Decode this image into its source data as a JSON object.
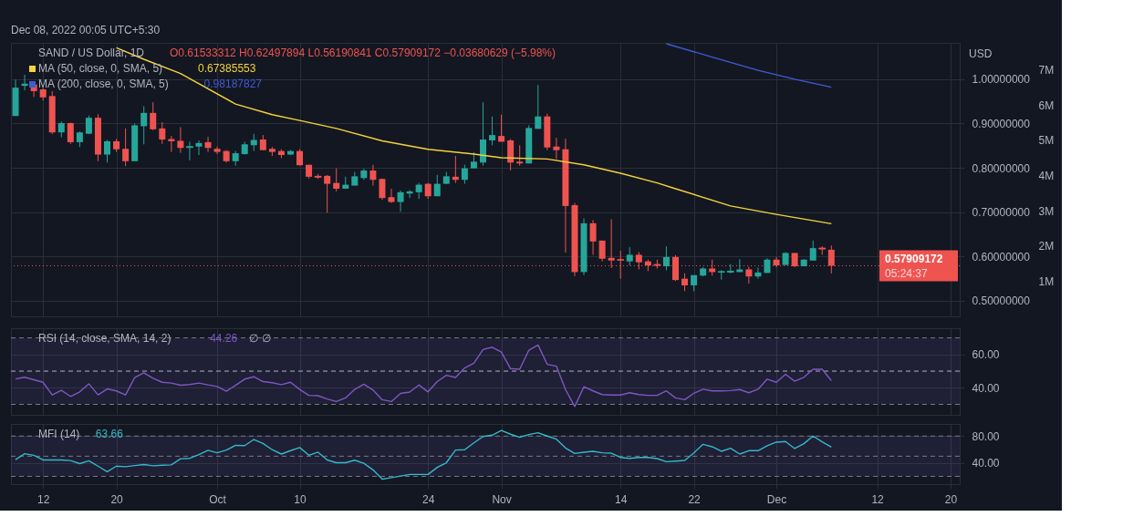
{
  "chart_data": [
    {
      "type": "candlestick",
      "title": "SAND / US Dollar, 1D",
      "ylabel": "USD",
      "x": [
        "2022-09-09",
        "2022-09-10",
        "2022-09-11",
        "2022-09-12",
        "2022-09-13",
        "2022-09-14",
        "2022-09-15",
        "2022-09-16",
        "2022-09-17",
        "2022-09-18",
        "2022-09-19",
        "2022-09-20",
        "2022-09-21",
        "2022-09-22",
        "2022-09-23",
        "2022-09-24",
        "2022-09-25",
        "2022-09-26",
        "2022-09-27",
        "2022-09-28",
        "2022-09-29",
        "2022-09-30",
        "2022-10-01",
        "2022-10-02",
        "2022-10-03",
        "2022-10-04",
        "2022-10-05",
        "2022-10-06",
        "2022-10-07",
        "2022-10-08",
        "2022-10-09",
        "2022-10-10",
        "2022-10-11",
        "2022-10-12",
        "2022-10-13",
        "2022-10-14",
        "2022-10-15",
        "2022-10-16",
        "2022-10-17",
        "2022-10-18",
        "2022-10-19",
        "2022-10-20",
        "2022-10-21",
        "2022-10-22",
        "2022-10-23",
        "2022-10-24",
        "2022-10-25",
        "2022-10-26",
        "2022-10-27",
        "2022-10-28",
        "2022-10-29",
        "2022-10-30",
        "2022-10-31",
        "2022-11-01",
        "2022-11-02",
        "2022-11-03",
        "2022-11-04",
        "2022-11-05",
        "2022-11-06",
        "2022-11-07",
        "2022-11-08",
        "2022-11-09",
        "2022-11-10",
        "2022-11-11",
        "2022-11-12",
        "2022-11-13",
        "2022-11-14",
        "2022-11-15",
        "2022-11-16",
        "2022-11-17",
        "2022-11-18",
        "2022-11-19",
        "2022-11-20",
        "2022-11-21",
        "2022-11-22",
        "2022-11-23",
        "2022-11-24",
        "2022-11-25",
        "2022-11-26",
        "2022-11-27",
        "2022-11-28",
        "2022-11-29",
        "2022-11-30",
        "2022-12-01",
        "2022-12-02",
        "2022-12-03",
        "2022-12-04",
        "2022-12-05",
        "2022-12-06",
        "2022-12-07"
      ],
      "ohlc": [
        [
          0.917,
          0.999,
          0.917,
          0.981
        ],
        [
          0.985,
          1.01,
          0.975,
          0.99
        ],
        [
          0.988,
          0.99,
          0.96,
          0.973
        ],
        [
          0.977,
          0.98,
          0.952,
          0.959
        ],
        [
          0.962,
          0.973,
          0.876,
          0.88
        ],
        [
          0.88,
          0.905,
          0.869,
          0.901
        ],
        [
          0.901,
          0.902,
          0.854,
          0.858
        ],
        [
          0.858,
          0.882,
          0.847,
          0.88
        ],
        [
          0.877,
          0.918,
          0.876,
          0.913
        ],
        [
          0.913,
          0.921,
          0.815,
          0.83
        ],
        [
          0.83,
          0.863,
          0.812,
          0.86
        ],
        [
          0.86,
          0.865,
          0.836,
          0.842
        ],
        [
          0.843,
          0.889,
          0.804,
          0.815
        ],
        [
          0.815,
          0.9,
          0.815,
          0.896
        ],
        [
          0.894,
          0.939,
          0.853,
          0.924
        ],
        [
          0.924,
          0.948,
          0.885,
          0.887
        ],
        [
          0.889,
          0.903,
          0.854,
          0.864
        ],
        [
          0.865,
          0.872,
          0.836,
          0.86
        ],
        [
          0.861,
          0.892,
          0.834,
          0.845
        ],
        [
          0.846,
          0.859,
          0.817,
          0.848
        ],
        [
          0.848,
          0.862,
          0.829,
          0.856
        ],
        [
          0.858,
          0.87,
          0.836,
          0.845
        ],
        [
          0.843,
          0.848,
          0.831,
          0.836
        ],
        [
          0.838,
          0.84,
          0.812,
          0.815
        ],
        [
          0.815,
          0.838,
          0.805,
          0.833
        ],
        [
          0.831,
          0.859,
          0.83,
          0.853
        ],
        [
          0.851,
          0.877,
          0.838,
          0.863
        ],
        [
          0.864,
          0.874,
          0.84,
          0.84
        ],
        [
          0.843,
          0.847,
          0.827,
          0.836
        ],
        [
          0.838,
          0.842,
          0.822,
          0.829
        ],
        [
          0.83,
          0.84,
          0.829,
          0.838
        ],
        [
          0.838,
          0.842,
          0.805,
          0.806
        ],
        [
          0.807,
          0.807,
          0.776,
          0.78
        ],
        [
          0.781,
          0.786,
          0.775,
          0.779
        ],
        [
          0.782,
          0.784,
          0.699,
          0.764
        ],
        [
          0.766,
          0.799,
          0.747,
          0.753
        ],
        [
          0.753,
          0.78,
          0.753,
          0.762
        ],
        [
          0.76,
          0.791,
          0.76,
          0.781
        ],
        [
          0.777,
          0.798,
          0.773,
          0.794
        ],
        [
          0.794,
          0.807,
          0.76,
          0.773
        ],
        [
          0.775,
          0.776,
          0.728,
          0.732
        ],
        [
          0.734,
          0.753,
          0.721,
          0.723
        ],
        [
          0.723,
          0.749,
          0.701,
          0.745
        ],
        [
          0.742,
          0.75,
          0.732,
          0.747
        ],
        [
          0.745,
          0.766,
          0.73,
          0.762
        ],
        [
          0.764,
          0.766,
          0.73,
          0.736
        ],
        [
          0.736,
          0.784,
          0.736,
          0.764
        ],
        [
          0.764,
          0.791,
          0.764,
          0.781
        ],
        [
          0.78,
          0.827,
          0.766,
          0.773
        ],
        [
          0.773,
          0.807,
          0.764,
          0.799
        ],
        [
          0.799,
          0.835,
          0.799,
          0.814
        ],
        [
          0.812,
          0.948,
          0.805,
          0.864
        ],
        [
          0.862,
          0.916,
          0.851,
          0.874
        ],
        [
          0.872,
          0.92,
          0.859,
          0.859
        ],
        [
          0.862,
          0.865,
          0.794,
          0.812
        ],
        [
          0.814,
          0.851,
          0.805,
          0.81
        ],
        [
          0.81,
          0.896,
          0.81,
          0.89
        ],
        [
          0.888,
          0.987,
          0.888,
          0.916
        ],
        [
          0.916,
          0.922,
          0.84,
          0.846
        ],
        [
          0.848,
          0.868,
          0.82,
          0.84
        ],
        [
          0.842,
          0.866,
          0.609,
          0.714
        ],
        [
          0.716,
          0.721,
          0.556,
          0.565
        ],
        [
          0.565,
          0.686,
          0.558,
          0.675
        ],
        [
          0.675,
          0.682,
          0.604,
          0.634
        ],
        [
          0.636,
          0.636,
          0.589,
          0.595
        ],
        [
          0.597,
          0.684,
          0.574,
          0.591
        ],
        [
          0.593,
          0.613,
          0.55,
          0.592
        ],
        [
          0.589,
          0.621,
          0.58,
          0.604
        ],
        [
          0.604,
          0.61,
          0.571,
          0.587
        ],
        [
          0.589,
          0.593,
          0.567,
          0.58
        ],
        [
          0.582,
          0.593,
          0.573,
          0.58
        ],
        [
          0.578,
          0.623,
          0.569,
          0.599
        ],
        [
          0.599,
          0.603,
          0.545,
          0.547
        ],
        [
          0.55,
          0.562,
          0.522,
          0.535
        ],
        [
          0.535,
          0.558,
          0.522,
          0.558
        ],
        [
          0.557,
          0.576,
          0.555,
          0.573
        ],
        [
          0.573,
          0.593,
          0.557,
          0.565
        ],
        [
          0.565,
          0.569,
          0.548,
          0.566
        ],
        [
          0.565,
          0.583,
          0.562,
          0.567
        ],
        [
          0.565,
          0.594,
          0.565,
          0.571
        ],
        [
          0.571,
          0.577,
          0.539,
          0.555
        ],
        [
          0.555,
          0.575,
          0.55,
          0.564
        ],
        [
          0.563,
          0.596,
          0.563,
          0.593
        ],
        [
          0.593,
          0.599,
          0.576,
          0.58
        ],
        [
          0.581,
          0.61,
          0.581,
          0.608
        ],
        [
          0.608,
          0.608,
          0.576,
          0.578
        ],
        [
          0.578,
          0.594,
          0.578,
          0.593
        ],
        [
          0.591,
          0.636,
          0.591,
          0.619
        ],
        [
          0.619,
          0.623,
          0.604,
          0.617
        ],
        [
          0.61533312,
          0.62497894,
          0.56190841,
          0.57909172
        ]
      ],
      "series": [
        {
          "name": "MA (50, close, 0, SMA, 5)",
          "color": "#f5d33a",
          "type": "line",
          "x": [
            "2022-09-20",
            "2022-09-23",
            "2022-09-27",
            "2022-10-03",
            "2022-10-07",
            "2022-10-10",
            "2022-10-14",
            "2022-10-19",
            "2022-10-24",
            "2022-10-29",
            "2022-11-01",
            "2022-11-06",
            "2022-11-10",
            "2022-11-14",
            "2022-11-18",
            "2022-11-20",
            "2022-11-26",
            "2022-12-01",
            "2022-12-07"
          ],
          "values": [
            1.071,
            1.045,
            1.013,
            0.944,
            0.92,
            0.907,
            0.889,
            0.861,
            0.842,
            0.831,
            0.823,
            0.82,
            0.807,
            0.788,
            0.766,
            0.753,
            0.714,
            0.695,
            0.674
          ]
        },
        {
          "name": "MA (200, close, 0, SMA, 5)",
          "color": "#3f5bd6",
          "type": "line",
          "x": [
            "2022-11-19",
            "2022-11-24",
            "2022-11-29",
            "2022-12-03",
            "2022-12-07"
          ],
          "values": [
            1.08,
            1.05,
            1.02,
            1.0,
            0.982
          ]
        }
      ],
      "xlim": [
        "2022-09-08T12:00",
        "2022-12-21"
      ],
      "xticks": [
        {
          "value": "2022-09-12",
          "label": null
        },
        {
          "value": "2022-09-20",
          "label": null
        },
        {
          "value": "2022-10-01",
          "label": null
        },
        {
          "value": "2022-10-10",
          "label": null
        },
        {
          "value": "2022-10-24",
          "label": null
        },
        {
          "value": "2022-11-01",
          "label": null
        },
        {
          "value": "2022-11-14",
          "label": null
        },
        {
          "value": "2022-11-22",
          "label": null
        },
        {
          "value": "2022-12-01",
          "label": null
        },
        {
          "value": "2022-12-12",
          "label": null
        },
        {
          "value": "2022-12-20",
          "label": null
        }
      ],
      "ylim": [
        0.465,
        1.082
      ],
      "yticks": [
        {
          "value": 0.5,
          "label": "0.50000000"
        },
        {
          "value": 0.6,
          "label": "0.60000000"
        },
        {
          "value": 0.7,
          "label": "0.70000000"
        },
        {
          "value": 0.8,
          "label": "0.80000000"
        },
        {
          "value": 0.9,
          "label": "0.90000000"
        },
        {
          "value": 1.0,
          "label": "1.00000000"
        }
      ],
      "y2lim": [
        0,
        7760000
      ],
      "y2ticks": [
        {
          "value": 1000000,
          "label": "1M"
        },
        {
          "value": 2000000,
          "label": "2M"
        },
        {
          "value": 3000000,
          "label": "3M"
        },
        {
          "value": 4000000,
          "label": "4M"
        },
        {
          "value": 5000000,
          "label": "5M"
        },
        {
          "value": 6000000,
          "label": "6M"
        },
        {
          "value": 7000000,
          "label": "7M"
        }
      ],
      "ref_lines": [
        {
          "axis": "y",
          "value": 0.57909172,
          "label": "0.57909172",
          "color": "#ef5350",
          "line_style": "dotted"
        }
      ],
      "annotations": [
        "Dec 08, 2022 00:05 UTC+5:30",
        "O0.61533312 H0.62497894 L0.56190841 C0.57909172 −0.03680629 (−5.98%)",
        "0.67385553",
        "0.98187827",
        "05:24:37"
      ],
      "grid": true,
      "tick_labels": "y",
      "legend": "top left"
    },
    {
      "type": "line",
      "x": [
        "2022-09-09",
        "2022-09-10",
        "2022-09-11",
        "2022-09-12",
        "2022-09-13",
        "2022-09-14",
        "2022-09-15",
        "2022-09-16",
        "2022-09-17",
        "2022-09-18",
        "2022-09-19",
        "2022-09-20",
        "2022-09-21",
        "2022-09-22",
        "2022-09-23",
        "2022-09-24",
        "2022-09-25",
        "2022-09-26",
        "2022-09-27",
        "2022-09-28",
        "2022-09-29",
        "2022-09-30",
        "2022-10-01",
        "2022-10-02",
        "2022-10-03",
        "2022-10-04",
        "2022-10-05",
        "2022-10-06",
        "2022-10-07",
        "2022-10-08",
        "2022-10-09",
        "2022-10-10",
        "2022-10-11",
        "2022-10-12",
        "2022-10-13",
        "2022-10-14",
        "2022-10-15",
        "2022-10-16",
        "2022-10-17",
        "2022-10-18",
        "2022-10-19",
        "2022-10-20",
        "2022-10-21",
        "2022-10-22",
        "2022-10-23",
        "2022-10-24",
        "2022-10-25",
        "2022-10-26",
        "2022-10-27",
        "2022-10-28",
        "2022-10-29",
        "2022-10-30",
        "2022-10-31",
        "2022-11-01",
        "2022-11-02",
        "2022-11-03",
        "2022-11-04",
        "2022-11-05",
        "2022-11-06",
        "2022-11-07",
        "2022-11-08",
        "2022-11-09",
        "2022-11-10",
        "2022-11-11",
        "2022-11-12",
        "2022-11-13",
        "2022-11-14",
        "2022-11-15",
        "2022-11-16",
        "2022-11-17",
        "2022-11-18",
        "2022-11-19",
        "2022-11-20",
        "2022-11-21",
        "2022-11-22",
        "2022-11-23",
        "2022-11-24",
        "2022-11-25",
        "2022-11-26",
        "2022-11-27",
        "2022-11-28",
        "2022-11-29",
        "2022-11-30",
        "2022-12-01",
        "2022-12-02",
        "2022-12-03",
        "2022-12-04",
        "2022-12-05",
        "2022-12-06",
        "2022-12-07"
      ],
      "series": [
        {
          "name": "RSI (14, close, SMA, 14, 2)",
          "color": "#7e57c2",
          "values": [
            45.3,
            46.3,
            44.8,
            43.3,
            35.7,
            38.4,
            34.8,
            37.5,
            42.4,
            35.7,
            39.3,
            38.1,
            35.7,
            46.1,
            49.0,
            45.7,
            43.3,
            42.8,
            41.5,
            41.9,
            42.8,
            41.7,
            40.8,
            37.9,
            41.5,
            45.2,
            46.6,
            43.7,
            43.0,
            41.9,
            43.3,
            39.0,
            35.4,
            35.2,
            33.2,
            31.7,
            33.9,
            39.0,
            42.1,
            38.6,
            32.8,
            31.7,
            36.6,
            37.4,
            41.7,
            37.5,
            43.7,
            47.5,
            46.2,
            51.9,
            54.8,
            63.0,
            64.4,
            61.5,
            51.5,
            51.1,
            62.6,
            65.7,
            54.1,
            53.0,
            38.9,
            28.7,
            40.6,
            38.1,
            35.9,
            35.6,
            35.6,
            37.0,
            35.9,
            35.4,
            35.4,
            38.1,
            33.9,
            32.8,
            36.7,
            39.1,
            38.1,
            38.1,
            38.3,
            38.9,
            37.0,
            39.1,
            45.2,
            43.3,
            48.1,
            43.9,
            46.3,
            51.1,
            51.1,
            44.26
          ]
        }
      ],
      "xlim": [
        "2022-09-08T12:00",
        "2022-12-21"
      ],
      "xticks": [
        {
          "value": "2022-09-12",
          "label": null
        },
        {
          "value": "2022-09-20",
          "label": null
        },
        {
          "value": "2022-10-01",
          "label": null
        },
        {
          "value": "2022-10-10",
          "label": null
        },
        {
          "value": "2022-10-24",
          "label": null
        },
        {
          "value": "2022-11-01",
          "label": null
        },
        {
          "value": "2022-11-14",
          "label": null
        },
        {
          "value": "2022-11-22",
          "label": null
        },
        {
          "value": "2022-12-01",
          "label": null
        },
        {
          "value": "2022-12-12",
          "label": null
        },
        {
          "value": "2022-12-20",
          "label": null
        }
      ],
      "ylim": [
        23.7,
        75.8
      ],
      "yticks": [
        {
          "value": 40,
          "label": "40.00"
        },
        {
          "value": 60,
          "label": "60.00"
        }
      ],
      "bands": [
        {
          "axis": "y",
          "from": 30,
          "to": 70,
          "color": "#7e57c2"
        }
      ],
      "ref_lines": [
        {
          "axis": "y",
          "value": 70,
          "color": "#787b86",
          "line_style": "dashed"
        },
        {
          "axis": "y",
          "value": 50,
          "color": "#b2b5be",
          "line_style": "dashed"
        },
        {
          "axis": "y",
          "value": 30,
          "color": "#787b86",
          "line_style": "dashed"
        }
      ],
      "annotations": [
        "44.26",
        "∅ ∅"
      ],
      "grid": true,
      "tick_labels": "y"
    },
    {
      "type": "line",
      "x": [
        "2022-09-09",
        "2022-09-10",
        "2022-09-11",
        "2022-09-12",
        "2022-09-13",
        "2022-09-14",
        "2022-09-15",
        "2022-09-16",
        "2022-09-17",
        "2022-09-18",
        "2022-09-19",
        "2022-09-20",
        "2022-09-21",
        "2022-09-22",
        "2022-09-23",
        "2022-09-24",
        "2022-09-25",
        "2022-09-26",
        "2022-09-27",
        "2022-09-28",
        "2022-09-29",
        "2022-09-30",
        "2022-10-01",
        "2022-10-02",
        "2022-10-03",
        "2022-10-04",
        "2022-10-05",
        "2022-10-06",
        "2022-10-07",
        "2022-10-08",
        "2022-10-09",
        "2022-10-10",
        "2022-10-11",
        "2022-10-12",
        "2022-10-13",
        "2022-10-14",
        "2022-10-15",
        "2022-10-16",
        "2022-10-17",
        "2022-10-18",
        "2022-10-19",
        "2022-10-20",
        "2022-10-21",
        "2022-10-22",
        "2022-10-23",
        "2022-10-24",
        "2022-10-25",
        "2022-10-26",
        "2022-10-27",
        "2022-10-28",
        "2022-10-29",
        "2022-10-30",
        "2022-10-31",
        "2022-11-01",
        "2022-11-02",
        "2022-11-03",
        "2022-11-04",
        "2022-11-05",
        "2022-11-06",
        "2022-11-07",
        "2022-11-08",
        "2022-11-09",
        "2022-11-10",
        "2022-11-11",
        "2022-11-12",
        "2022-11-13",
        "2022-11-14",
        "2022-11-15",
        "2022-11-16",
        "2022-11-17",
        "2022-11-18",
        "2022-11-19",
        "2022-11-20",
        "2022-11-21",
        "2022-11-22",
        "2022-11-23",
        "2022-11-24",
        "2022-11-25",
        "2022-11-26",
        "2022-11-27",
        "2022-11-28",
        "2022-11-29",
        "2022-11-30",
        "2022-12-01",
        "2022-12-02",
        "2022-12-03",
        "2022-12-04",
        "2022-12-05",
        "2022-12-06",
        "2022-12-07"
      ],
      "series": [
        {
          "name": "MFI (14)",
          "color": "#33b9c8",
          "values": [
            44.9,
            53.7,
            51.4,
            44.4,
            44.4,
            44.4,
            43.5,
            38.9,
            43.1,
            35.2,
            26.9,
            35.2,
            34.3,
            36.1,
            37.5,
            35.7,
            36.6,
            37.1,
            46.3,
            46.8,
            52.3,
            58.8,
            55.1,
            59.2,
            66.1,
            65.7,
            74.9,
            68.9,
            59.7,
            53.2,
            58.3,
            62.9,
            51.4,
            56.0,
            44.4,
            40.3,
            40.3,
            44.0,
            39.4,
            29.7,
            15.8,
            18.1,
            20.5,
            22.8,
            22.8,
            22.8,
            33.4,
            40.3,
            59.2,
            59.7,
            69.8,
            79.3,
            81.3,
            88.2,
            82.7,
            78.2,
            82.3,
            85.0,
            80.0,
            75.4,
            62.3,
            54.1,
            55.9,
            57.3,
            55.0,
            54.5,
            48.2,
            46.8,
            48.2,
            48.2,
            46.4,
            41.8,
            42.7,
            43.6,
            55.0,
            67.7,
            64.1,
            57.3,
            61.8,
            53.2,
            58.2,
            58.2,
            65.5,
            70.9,
            71.8,
            61.4,
            68.6,
            80.0,
            71.4,
            63.66
          ]
        }
      ],
      "xlim": [
        "2022-09-08T12:00",
        "2022-12-21"
      ],
      "xticks": [
        {
          "value": "2022-09-12",
          "label": "12"
        },
        {
          "value": "2022-09-20",
          "label": "20"
        },
        {
          "value": "2022-10-01",
          "label": "Oct"
        },
        {
          "value": "2022-10-10",
          "label": "10"
        },
        {
          "value": "2022-10-24",
          "label": "24"
        },
        {
          "value": "2022-11-01",
          "label": "Nov"
        },
        {
          "value": "2022-11-14",
          "label": "14"
        },
        {
          "value": "2022-11-22",
          "label": "22"
        },
        {
          "value": "2022-12-01",
          "label": "Dec"
        },
        {
          "value": "2022-12-12",
          "label": "12"
        },
        {
          "value": "2022-12-20",
          "label": "20"
        }
      ],
      "ylim": [
        8.4,
        98
      ],
      "yticks": [
        {
          "value": 40,
          "label": "40.00"
        },
        {
          "value": 80,
          "label": "80.00"
        }
      ],
      "bands": [
        {
          "axis": "y",
          "from": 20,
          "to": 80,
          "color": "#7e57c2"
        }
      ],
      "ref_lines": [
        {
          "axis": "y",
          "value": 80,
          "color": "#787b86",
          "line_style": "dashed"
        },
        {
          "axis": "y",
          "value": 50,
          "color": "#787b86",
          "line_style": "dashed"
        },
        {
          "axis": "y",
          "value": 20,
          "color": "#787b86",
          "line_style": "dashed"
        }
      ],
      "annotations": [
        "63.66"
      ],
      "grid": true
    }
  ]
}
